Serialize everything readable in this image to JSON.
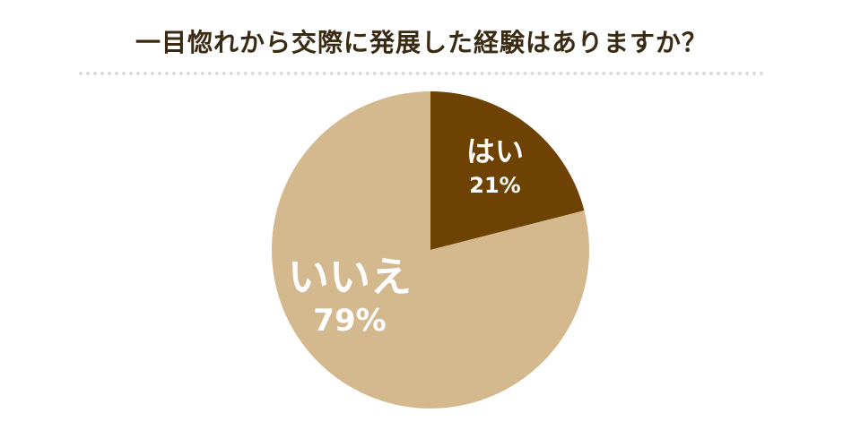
{
  "chart_data": {
    "type": "pie",
    "title": "一目惚れから交際に発展した経験はありますか？",
    "categories": [
      "はい",
      "いいえ"
    ],
    "values": [
      21,
      79
    ],
    "value_labels": [
      "21%",
      "79%"
    ],
    "start_angle": "12 o'clock",
    "direction": "clockwise",
    "legend": "none",
    "colors": [
      "#6e4203",
      "#d4b88e"
    ]
  }
}
